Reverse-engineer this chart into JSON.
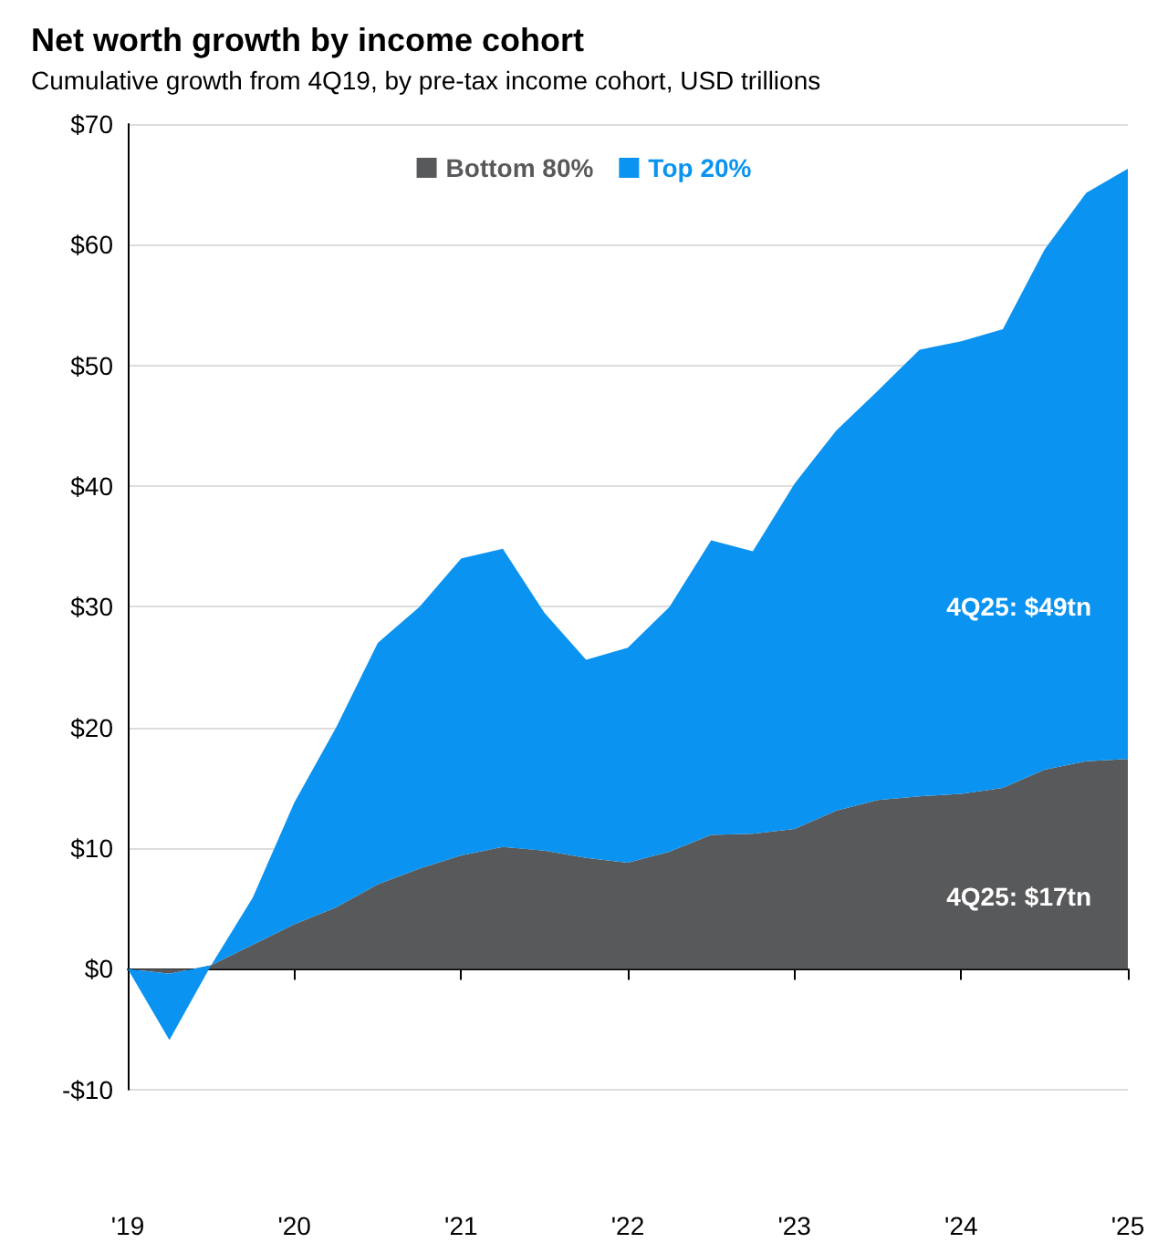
{
  "chart_data": {
    "type": "area",
    "stacked": true,
    "title": "Net worth growth by income cohort",
    "subtitle": "Cumulative growth from 4Q19, by pre-tax income cohort, USD trillions",
    "categories": [
      "'19",
      null,
      null,
      null,
      "'20",
      null,
      null,
      null,
      "'21",
      null,
      null,
      null,
      "'22",
      null,
      null,
      null,
      "'23",
      null,
      null,
      null,
      "'24",
      null,
      null,
      null,
      "'25"
    ],
    "series": [
      {
        "name": "Bottom 80%",
        "color": "#58595b",
        "values": [
          0,
          -0.4,
          0.3,
          2,
          3.7,
          5.1,
          7,
          8.3,
          9.4,
          10.1,
          9.8,
          9.2,
          8.8,
          9.7,
          11.1,
          11.2,
          11.6,
          13.1,
          14,
          14.3,
          14.5,
          15,
          16.5,
          17.2,
          17.4
        ]
      },
      {
        "name": "Top 20%",
        "color": "#0a93f0",
        "values": [
          0,
          -5.5,
          0,
          3.9,
          10.1,
          14.9,
          20,
          21.7,
          24.6,
          24.7,
          19.7,
          16.4,
          17.8,
          20.3,
          24.4,
          23.4,
          28.6,
          31.5,
          33.9,
          37,
          37.5,
          38,
          43.1,
          47.1,
          48.9
        ]
      }
    ],
    "ylim": [
      -10,
      70
    ],
    "yticks": [
      {
        "value": -10,
        "label": "-$10"
      },
      {
        "value": 0,
        "label": "$0"
      },
      {
        "value": 10,
        "label": "$10"
      },
      {
        "value": 20,
        "label": "$20"
      },
      {
        "value": 30,
        "label": "$30"
      },
      {
        "value": 40,
        "label": "$40"
      },
      {
        "value": 50,
        "label": "$50"
      },
      {
        "value": 60,
        "label": "$60"
      },
      {
        "value": 70,
        "label": "$70"
      }
    ],
    "grid": "y",
    "legend": "top",
    "annotations": [
      {
        "text": "4Q25: $49tn",
        "x": "'25",
        "y": 30
      },
      {
        "text": "4Q25: $17tn",
        "x": "'25",
        "y": 6
      }
    ]
  }
}
